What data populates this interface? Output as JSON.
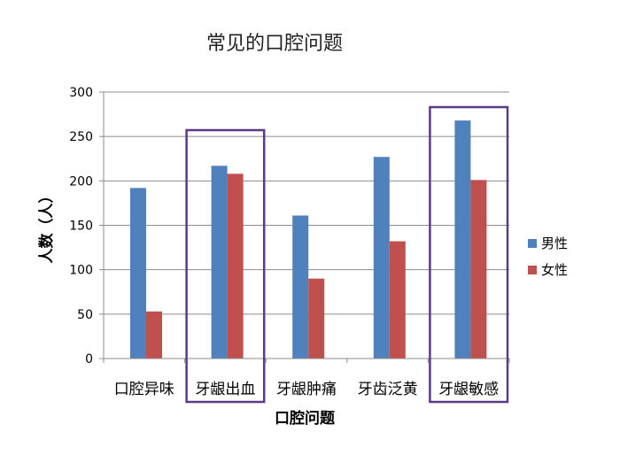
{
  "chart_data": {
    "type": "bar",
    "title": "常见的口腔问题",
    "xlabel": "口腔问题",
    "ylabel": "人数（人）",
    "categories": [
      "口腔异味",
      "牙龈出血",
      "牙龈肿痛",
      "牙齿泛黄",
      "牙龈敏感"
    ],
    "series": [
      {
        "name": "男性",
        "values": [
          192,
          217,
          161,
          227,
          268
        ],
        "color": "#4f81bd"
      },
      {
        "name": "女性",
        "values": [
          53,
          208,
          90,
          132,
          201
        ],
        "color": "#c0504d"
      }
    ],
    "ylim": [
      0,
      300
    ],
    "yticks": [
      0,
      50,
      100,
      150,
      200,
      250,
      300
    ],
    "grid": true,
    "legend_position": "right",
    "highlighted_categories": [
      "牙龈出血",
      "牙龈敏感"
    ],
    "highlight_color": "#5b3a86"
  }
}
